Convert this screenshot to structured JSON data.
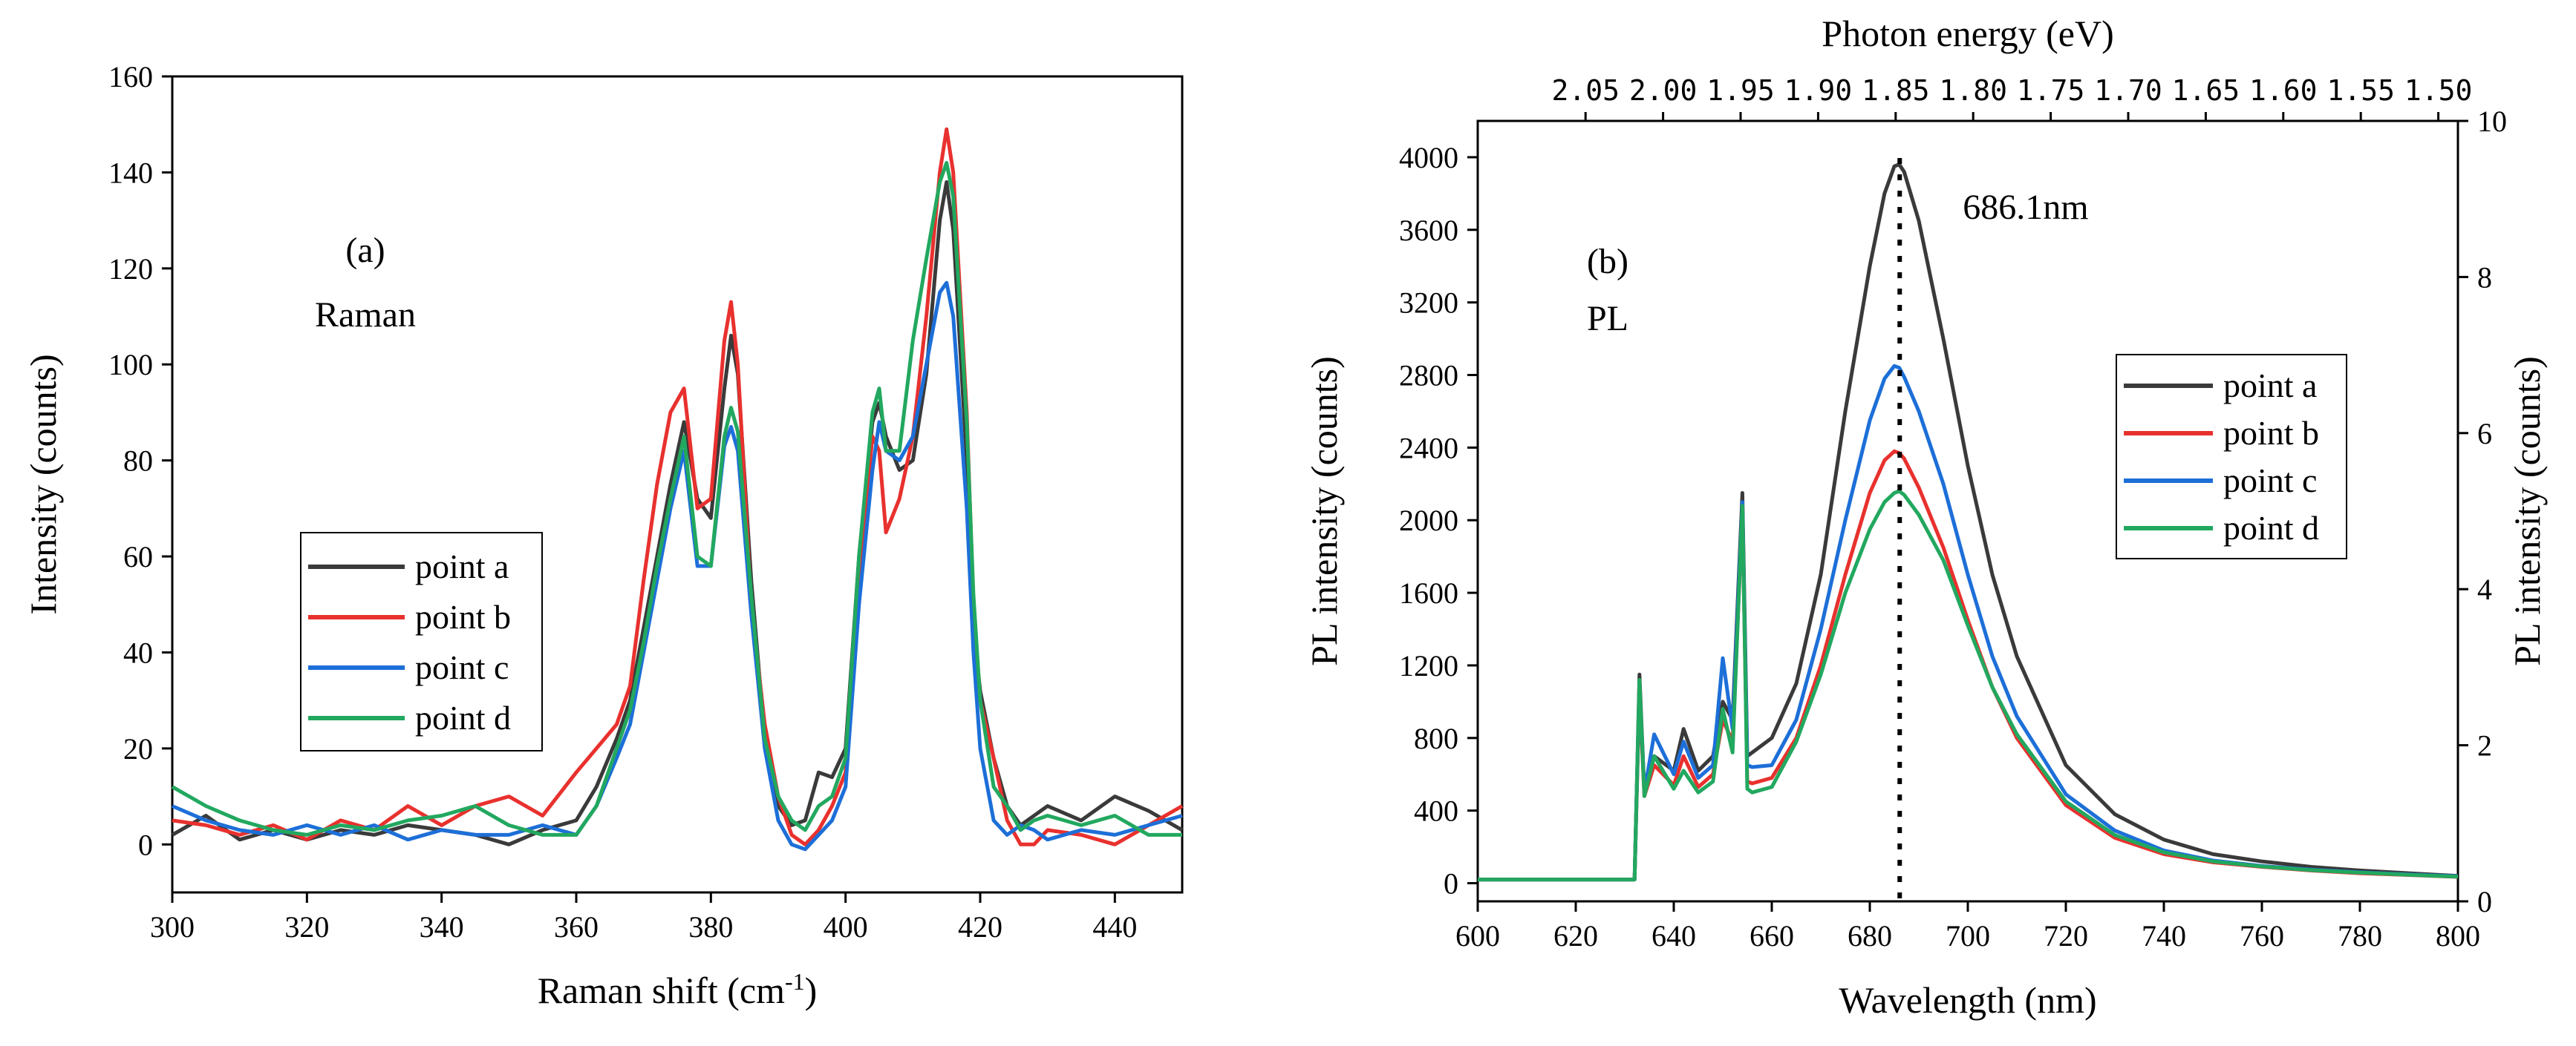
{
  "chart_data": [
    {
      "type": "line",
      "panel_label": "(a)",
      "title": "Raman",
      "xlabel": "Raman shift (cm",
      "xlabel_sup": "-1",
      "xlabel_end": ")",
      "ylabel": "Intensity (counts)",
      "xlim": [
        300,
        450
      ],
      "ylim": [
        -10,
        160
      ],
      "xticks": [
        300,
        320,
        340,
        360,
        380,
        400,
        420,
        440
      ],
      "yticks": [
        0,
        20,
        40,
        60,
        80,
        100,
        120,
        140,
        160
      ],
      "legend_position": "center-left",
      "series": [
        {
          "name": "point a",
          "color": "#3a3a3a",
          "x": [
            300,
            305,
            310,
            315,
            320,
            325,
            330,
            335,
            340,
            345,
            350,
            355,
            360,
            363,
            366,
            368,
            370,
            372,
            374,
            376,
            378,
            380,
            382,
            383,
            384,
            386,
            388,
            390,
            392,
            394,
            396,
            398,
            400,
            402,
            404,
            405,
            406,
            408,
            410,
            412,
            414,
            415,
            416,
            418,
            419,
            420,
            422,
            424,
            426,
            428,
            430,
            435,
            440,
            445,
            450
          ],
          "y": [
            2,
            6,
            1,
            3,
            1,
            3,
            2,
            4,
            3,
            2,
            0,
            3,
            5,
            12,
            22,
            30,
            45,
            60,
            75,
            88,
            72,
            68,
            95,
            106,
            98,
            55,
            22,
            8,
            4,
            5,
            15,
            14,
            20,
            60,
            88,
            92,
            85,
            78,
            80,
            98,
            130,
            138,
            128,
            80,
            45,
            32,
            18,
            8,
            4,
            6,
            8,
            5,
            10,
            7,
            3
          ]
        },
        {
          "name": "point b",
          "color": "#e8312e",
          "x": [
            300,
            305,
            310,
            315,
            320,
            325,
            330,
            335,
            340,
            345,
            350,
            355,
            360,
            363,
            366,
            368,
            370,
            372,
            374,
            376,
            378,
            380,
            382,
            383,
            384,
            386,
            388,
            390,
            392,
            394,
            396,
            398,
            400,
            402,
            404,
            405,
            406,
            408,
            410,
            412,
            414,
            415,
            416,
            418,
            419,
            420,
            422,
            424,
            426,
            428,
            430,
            435,
            440,
            445,
            450
          ],
          "y": [
            5,
            4,
            2,
            4,
            1,
            5,
            3,
            8,
            4,
            8,
            10,
            6,
            15,
            20,
            25,
            33,
            55,
            75,
            90,
            95,
            70,
            72,
            105,
            113,
            100,
            50,
            25,
            10,
            2,
            0,
            3,
            8,
            15,
            55,
            85,
            82,
            65,
            72,
            85,
            110,
            140,
            149,
            140,
            90,
            50,
            30,
            18,
            5,
            0,
            0,
            3,
            2,
            0,
            4,
            8
          ]
        },
        {
          "name": "point c",
          "color": "#1d6fd8",
          "x": [
            300,
            305,
            310,
            315,
            320,
            325,
            330,
            335,
            340,
            345,
            350,
            355,
            360,
            363,
            366,
            368,
            370,
            372,
            374,
            376,
            378,
            380,
            382,
            383,
            384,
            386,
            388,
            390,
            392,
            394,
            396,
            398,
            400,
            402,
            404,
            405,
            406,
            408,
            410,
            412,
            414,
            415,
            416,
            418,
            419,
            420,
            422,
            424,
            426,
            428,
            430,
            435,
            440,
            445,
            450
          ],
          "y": [
            8,
            5,
            3,
            2,
            4,
            2,
            4,
            1,
            3,
            2,
            2,
            4,
            2,
            8,
            18,
            25,
            40,
            55,
            70,
            82,
            58,
            58,
            83,
            87,
            82,
            48,
            20,
            5,
            0,
            -1,
            2,
            5,
            12,
            50,
            78,
            88,
            82,
            80,
            85,
            100,
            115,
            117,
            110,
            70,
            40,
            20,
            5,
            2,
            4,
            3,
            1,
            3,
            2,
            4,
            6
          ]
        },
        {
          "name": "point d",
          "color": "#22a85f",
          "x": [
            300,
            305,
            310,
            315,
            320,
            325,
            330,
            335,
            340,
            345,
            350,
            355,
            360,
            363,
            366,
            368,
            370,
            372,
            374,
            376,
            378,
            380,
            382,
            383,
            384,
            386,
            388,
            390,
            392,
            394,
            396,
            398,
            400,
            402,
            404,
            405,
            406,
            408,
            410,
            412,
            414,
            415,
            416,
            418,
            419,
            420,
            422,
            424,
            426,
            428,
            430,
            435,
            440,
            445,
            450
          ],
          "y": [
            12,
            8,
            5,
            3,
            2,
            4,
            3,
            5,
            6,
            8,
            4,
            2,
            2,
            8,
            20,
            28,
            42,
            58,
            72,
            85,
            60,
            58,
            85,
            91,
            86,
            52,
            22,
            10,
            5,
            3,
            8,
            10,
            18,
            60,
            90,
            95,
            82,
            82,
            105,
            122,
            138,
            142,
            135,
            88,
            52,
            30,
            12,
            8,
            3,
            5,
            6,
            4,
            6,
            2,
            2
          ]
        }
      ],
      "legend": [
        "point a",
        "point b",
        "point c",
        "point d"
      ]
    },
    {
      "type": "line",
      "panel_label": "(b)",
      "title": "PL",
      "xlabel": "Wavelength (nm)",
      "ylabel": "PL intensity (counts)",
      "ylabel_right": "PL intensity (counts)",
      "top_xlabel": "Photon energy (eV)",
      "xlim": [
        600,
        800
      ],
      "ylim": [
        -100,
        4200
      ],
      "ylim_right": [
        0,
        10
      ],
      "xticks": [
        600,
        620,
        640,
        660,
        680,
        700,
        720,
        740,
        760,
        780,
        800
      ],
      "yticks": [
        0,
        400,
        800,
        1200,
        1600,
        2000,
        2400,
        2800,
        3200,
        3600,
        4000
      ],
      "yticks_right": [
        0,
        2,
        4,
        6,
        8,
        10
      ],
      "top_ticks": [
        "2.05",
        "2.00",
        "1.95",
        "1.90",
        "1.85",
        "1.80",
        "1.75",
        "1.70",
        "1.65",
        "1.60",
        "1.55",
        "1.50"
      ],
      "annotation": "686.1nm",
      "annotation_x": 686.1,
      "legend_position": "right",
      "series": [
        {
          "name": "point a",
          "color": "#3a3a3a",
          "x": [
            600,
            610,
            620,
            632,
            633,
            634,
            636,
            640,
            642,
            645,
            648,
            650,
            652,
            654,
            655,
            656,
            660,
            665,
            670,
            675,
            680,
            683,
            685,
            686,
            687,
            690,
            695,
            700,
            705,
            710,
            720,
            730,
            740,
            750,
            760,
            770,
            780,
            790,
            800
          ],
          "y": [
            20,
            20,
            20,
            20,
            1150,
            500,
            700,
            620,
            850,
            620,
            700,
            1000,
            900,
            2150,
            700,
            720,
            800,
            1100,
            1700,
            2600,
            3400,
            3800,
            3950,
            3960,
            3920,
            3650,
            3000,
            2300,
            1700,
            1250,
            650,
            380,
            240,
            160,
            120,
            90,
            70,
            55,
            40
          ]
        },
        {
          "name": "point b",
          "color": "#e8312e",
          "x": [
            600,
            610,
            620,
            632,
            633,
            634,
            636,
            640,
            642,
            645,
            648,
            650,
            652,
            654,
            655,
            656,
            660,
            665,
            670,
            675,
            680,
            683,
            685,
            686,
            687,
            690,
            695,
            700,
            705,
            710,
            720,
            730,
            740,
            750,
            760,
            770,
            780,
            790,
            800
          ],
          "y": [
            20,
            20,
            20,
            20,
            1050,
            480,
            650,
            540,
            700,
            530,
            600,
            900,
            780,
            2050,
            560,
            550,
            580,
            800,
            1200,
            1700,
            2150,
            2330,
            2380,
            2370,
            2340,
            2180,
            1850,
            1450,
            1080,
            800,
            430,
            250,
            160,
            115,
            90,
            70,
            55,
            45,
            35
          ]
        },
        {
          "name": "point c",
          "color": "#1d6fd8",
          "x": [
            600,
            610,
            620,
            632,
            633,
            634,
            636,
            640,
            642,
            645,
            648,
            650,
            652,
            654,
            655,
            656,
            660,
            665,
            670,
            675,
            680,
            683,
            685,
            686,
            687,
            690,
            695,
            700,
            705,
            710,
            720,
            730,
            740,
            750,
            760,
            770,
            780,
            790,
            800
          ],
          "y": [
            20,
            20,
            20,
            20,
            1100,
            500,
            820,
            600,
            780,
            580,
            650,
            1240,
            850,
            2100,
            650,
            640,
            650,
            900,
            1400,
            2000,
            2550,
            2780,
            2850,
            2840,
            2790,
            2600,
            2200,
            1700,
            1250,
            920,
            490,
            290,
            180,
            125,
            95,
            75,
            60,
            48,
            38
          ]
        },
        {
          "name": "point d",
          "color": "#22a85f",
          "x": [
            600,
            610,
            620,
            632,
            633,
            634,
            636,
            640,
            642,
            645,
            648,
            650,
            652,
            654,
            655,
            656,
            660,
            665,
            670,
            675,
            680,
            683,
            685,
            686,
            687,
            690,
            695,
            700,
            705,
            710,
            720,
            730,
            740,
            750,
            760,
            770,
            780,
            790,
            800
          ],
          "y": [
            20,
            20,
            20,
            20,
            1120,
            480,
            700,
            520,
            620,
            500,
            560,
            960,
            720,
            2080,
            520,
            500,
            530,
            780,
            1150,
            1600,
            1950,
            2100,
            2150,
            2160,
            2140,
            2030,
            1780,
            1420,
            1080,
            820,
            450,
            265,
            170,
            120,
            92,
            72,
            58,
            46,
            36
          ]
        }
      ],
      "legend": [
        "point a",
        "point b",
        "point c",
        "point d"
      ]
    }
  ]
}
